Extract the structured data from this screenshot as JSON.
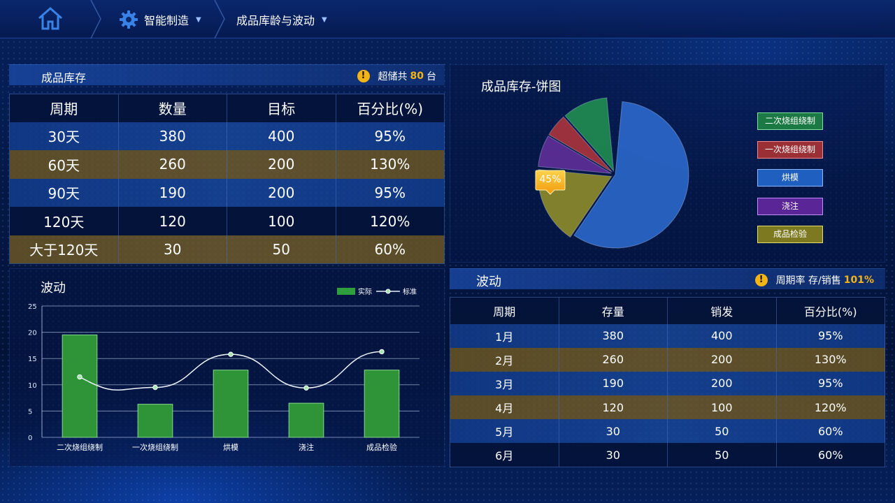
{
  "nav": {
    "module": "智能制造",
    "page": "成品库龄与波动"
  },
  "inventory": {
    "title": "成品库存",
    "note_prefix": "超储共",
    "note_value": "80",
    "note_suffix": "台",
    "headers": [
      "周期",
      "数量",
      "目标",
      "百分比(%)"
    ],
    "rows": [
      [
        "30天",
        "380",
        "400",
        "95%"
      ],
      [
        "60天",
        "260",
        "200",
        "130%"
      ],
      [
        "90天",
        "190",
        "200",
        "95%"
      ],
      [
        "120天",
        "120",
        "100",
        "120%"
      ],
      [
        "大于120天",
        "30",
        "50",
        "60%"
      ]
    ]
  },
  "pie": {
    "title": "成品库存-饼图",
    "callout": "45%",
    "legend": [
      {
        "label": "二次烧组绕制",
        "color": "#1f8a4a"
      },
      {
        "label": "一次烧组绕制",
        "color": "#b23a3f"
      },
      {
        "label": "烘模",
        "color": "#1f5fc0"
      },
      {
        "label": "浇注",
        "color": "#6a2fa8"
      },
      {
        "label": "成品检验",
        "color": "#8f8a25"
      }
    ]
  },
  "wave": {
    "title": "波动",
    "legend_actual": "实际",
    "legend_standard": "标准"
  },
  "wave2": {
    "title": "波动",
    "note_prefix": "周期率 存/销售",
    "note_value": "101%",
    "headers": [
      "周期",
      "存量",
      "销发",
      "百分比(%)"
    ],
    "rows": [
      [
        "1月",
        "380",
        "400",
        "95%"
      ],
      [
        "2月",
        "260",
        "200",
        "130%"
      ],
      [
        "3月",
        "190",
        "200",
        "95%"
      ],
      [
        "4月",
        "120",
        "100",
        "120%"
      ],
      [
        "5月",
        "30",
        "50",
        "60%"
      ],
      [
        "6月",
        "30",
        "50",
        "60%"
      ]
    ]
  },
  "chart_data": [
    {
      "type": "pie",
      "categories": [
        "烘模",
        "成品检验",
        "浇注",
        "一次烧组绕制",
        "二次烧组绕制"
      ],
      "values": [
        58,
        17,
        7,
        5,
        10
      ],
      "colors": [
        "#2a66c8",
        "#8c8a2a",
        "#5e2f98",
        "#a8343c",
        "#1f8a50"
      ],
      "annotations": [
        "45%"
      ]
    },
    {
      "type": "bar",
      "categories": [
        "二次烧组绕制",
        "一次烧组绕制",
        "烘模",
        "浇注",
        "成品检验"
      ],
      "series": [
        {
          "name": "实际",
          "type": "bar",
          "values": [
            19.5,
            6.3,
            12.8,
            6.5,
            12.8
          ]
        },
        {
          "name": "标准",
          "type": "line",
          "values": [
            11.5,
            9.5,
            15.8,
            9.4,
            16.3
          ]
        }
      ],
      "yticks": [
        "0",
        "5",
        "10",
        "15",
        "20",
        "25"
      ],
      "ylim": [
        0,
        25
      ],
      "grid": true,
      "legend": "top-right"
    }
  ]
}
